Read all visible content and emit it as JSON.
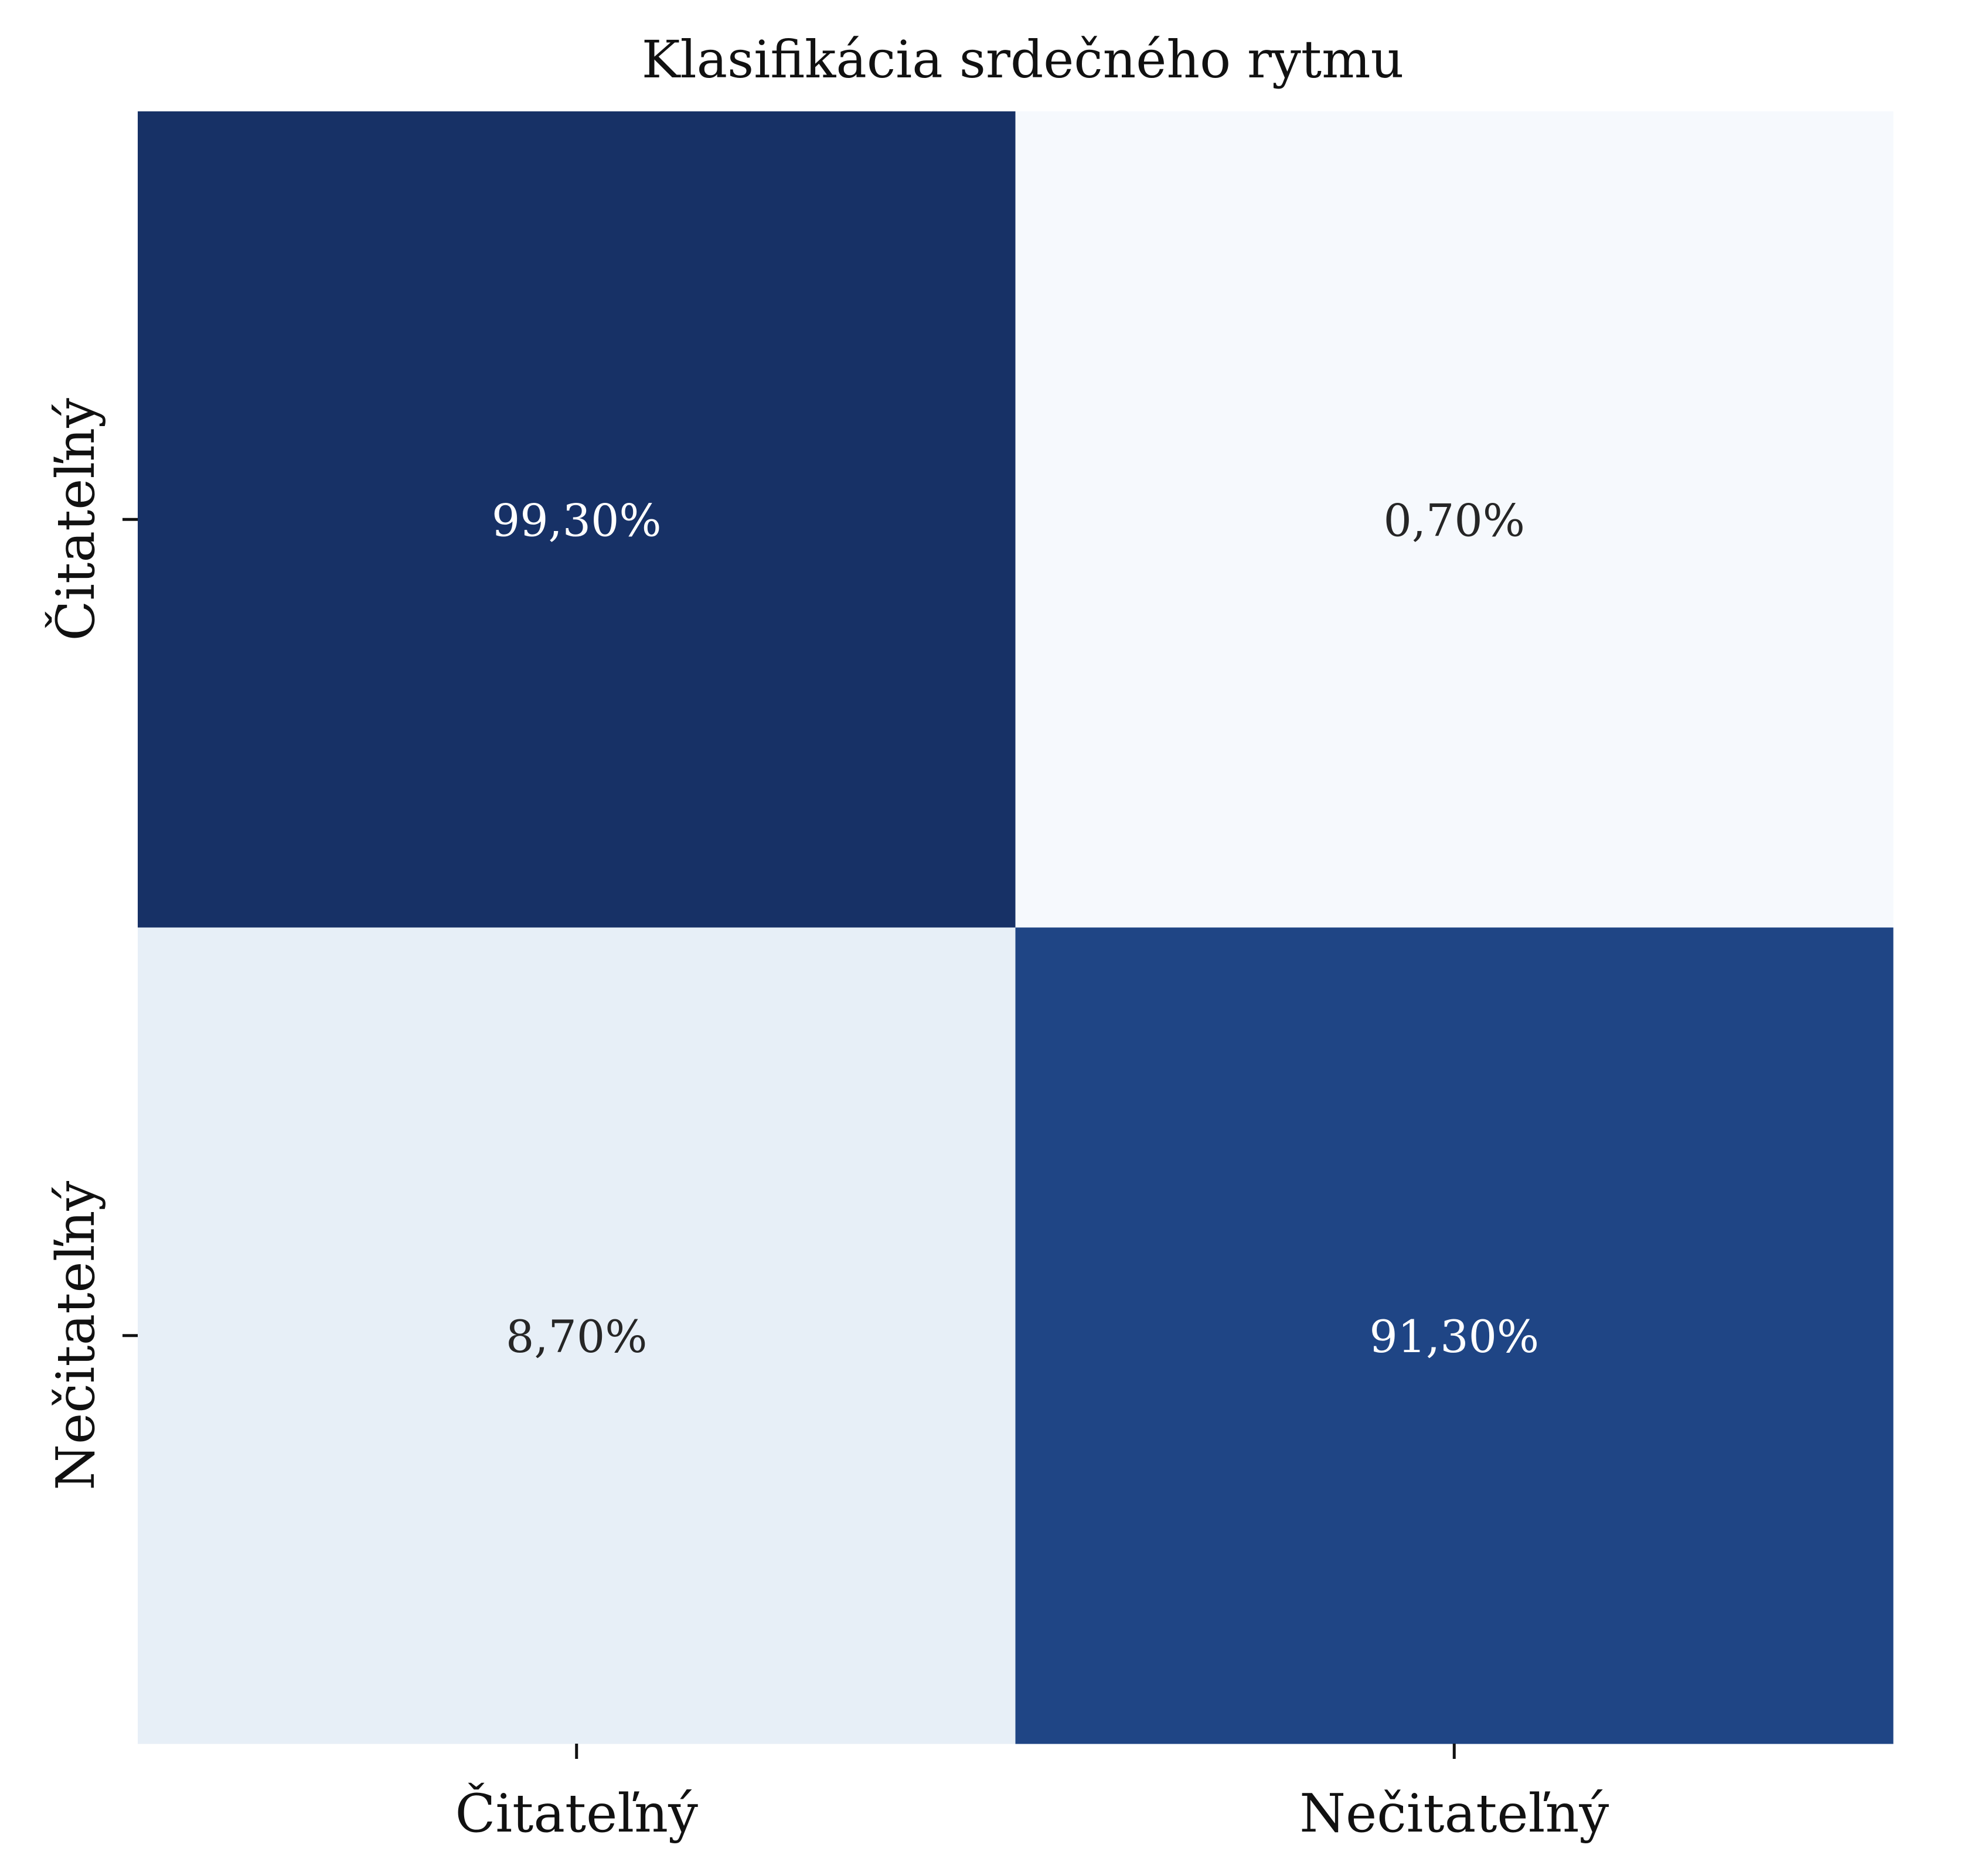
{
  "chart_data": {
    "type": "heatmap",
    "title": "Klasifikácia srdečného rytmu",
    "row_labels": [
      "Čitateľný",
      "Nečitateľný"
    ],
    "col_labels": [
      "Čitateľný",
      "Nečitateľný"
    ],
    "values": [
      [
        99.3,
        0.7
      ],
      [
        8.7,
        91.3
      ]
    ],
    "cell_labels": [
      [
        "99,30%",
        "0,70%"
      ],
      [
        "8,70%",
        "91,30%"
      ]
    ],
    "colormap": "Blues",
    "cell_colors": [
      [
        "#173166",
        "#f6f9fd"
      ],
      [
        "#e7eff7",
        "#1f4585"
      ]
    ],
    "label_colors": {
      "dark_cell": "#ffffff",
      "light_cell": "#262626"
    },
    "grid": false,
    "colorbar": false
  }
}
